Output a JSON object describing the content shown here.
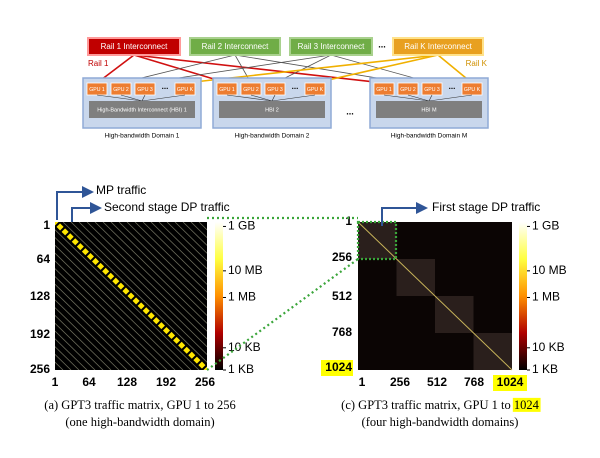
{
  "diagram": {
    "rails": [
      "Rail 1 Interconnect",
      "Rail 2 Interconnect",
      "Rail 3 Interconnect",
      "Rail K Interconnect"
    ],
    "rail_labels": [
      "Rail 1",
      "Rail K"
    ],
    "ellipsis": "...",
    "domains": [
      {
        "gpus": [
          "GPU 1",
          "GPU 2",
          "GPU 3",
          "GPU K"
        ],
        "hbi": "High-Bandwidth Interconnect (HBI) 1",
        "label": "High-bandwidth Domain 1"
      },
      {
        "gpus": [
          "GPU 1",
          "GPU 2",
          "GPU 3",
          "GPU K"
        ],
        "hbi": "HBI 2",
        "label": "High-bandwidth Domain 2"
      },
      {
        "gpus": [
          "GPU 1",
          "GPU 2",
          "GPU 3",
          "GPU K"
        ],
        "hbi": "HBI M",
        "label": "High-bandwidth Domain M"
      }
    ]
  },
  "panel_a": {
    "annotations": [
      "MP traffic",
      "Second stage DP traffic"
    ],
    "ticks": [
      "1",
      "64",
      "128",
      "192",
      "256"
    ],
    "colorbar": [
      "1 GB",
      "10 MB",
      "1 MB",
      "10 KB",
      "1 KB"
    ],
    "caption": [
      "(a) GPT3 traffic matrix, GPU 1 to 256",
      "(one high-bandwidth domain)"
    ]
  },
  "panel_c": {
    "annotation": "First stage DP traffic",
    "ticks": [
      "1",
      "256",
      "512",
      "768",
      "1024"
    ],
    "colorbar": [
      "1 GB",
      "10 MB",
      "1 MB",
      "10 KB",
      "1 KB"
    ],
    "caption_prefix": "(c) GPT3 traffic matrix, GPU 1 to ",
    "caption_highlight": "1024",
    "caption_line2": "(four high-bandwidth domains)"
  }
}
